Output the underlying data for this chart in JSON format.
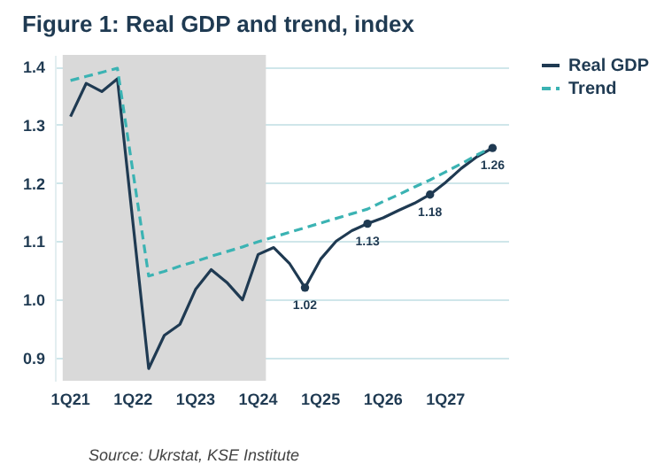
{
  "chart_data": {
    "type": "line",
    "title": "Figure 1: Real GDP and trend, index",
    "annotations": [
      "Source: Ukrstat, KSE Institute"
    ],
    "categories": [
      "1Q21",
      null,
      null,
      null,
      "1Q22",
      null,
      null,
      null,
      "1Q23",
      null,
      null,
      null,
      "1Q24",
      null,
      null,
      null,
      "1Q25",
      null,
      null,
      null,
      "1Q26",
      null,
      null,
      null,
      "1Q27",
      null,
      null,
      null
    ],
    "ylim": [
      0.86,
      1.42
    ],
    "yticks": [
      0.9,
      {
        "value": 1,
        "label": "1.0"
      },
      1.1,
      1.2,
      1.3,
      1.4
    ],
    "grid": "y",
    "legend": "right",
    "bands": [
      {
        "axis": "x",
        "from": "1Q21",
        "to": "1Q24",
        "color": "#d9d9d9"
      }
    ],
    "series": [
      {
        "name": "Real GDP",
        "color": "#1f3a52",
        "line_style": "solid",
        "values": [
          1.314,
          1.371,
          1.357,
          1.379,
          1.13,
          0.881,
          0.938,
          0.957,
          1.017,
          1.051,
          1.029,
          0.999,
          1.077,
          1.089,
          1.062,
          1.02,
          1.069,
          1.1,
          1.118,
          1.13,
          1.14,
          1.153,
          1.165,
          1.18,
          1.201,
          1.225,
          1.245,
          1.26
        ]
      },
      {
        "name": "Trend",
        "color": "#3bb3b3",
        "line_style": "dashed",
        "values": [
          1.376,
          1.383,
          1.39,
          1.397,
          1.218,
          1.04,
          1.048,
          1.057,
          1.065,
          1.074,
          1.082,
          1.09,
          1.099,
          1.107,
          1.115,
          1.123,
          1.131,
          1.139,
          1.147,
          1.155,
          1.168,
          1.18,
          1.193,
          1.205,
          1.219,
          1.233,
          1.248,
          1.262
        ]
      },
      {
        "type": "scatter",
        "color": "#1f3a52",
        "marker": "circle",
        "data_labels": true,
        "values": [
          null,
          null,
          null,
          null,
          null,
          null,
          null,
          null,
          null,
          null,
          null,
          null,
          null,
          null,
          null,
          1.02,
          null,
          null,
          null,
          1.13,
          null,
          null,
          null,
          1.18,
          null,
          null,
          null,
          1.26
        ]
      }
    ]
  }
}
